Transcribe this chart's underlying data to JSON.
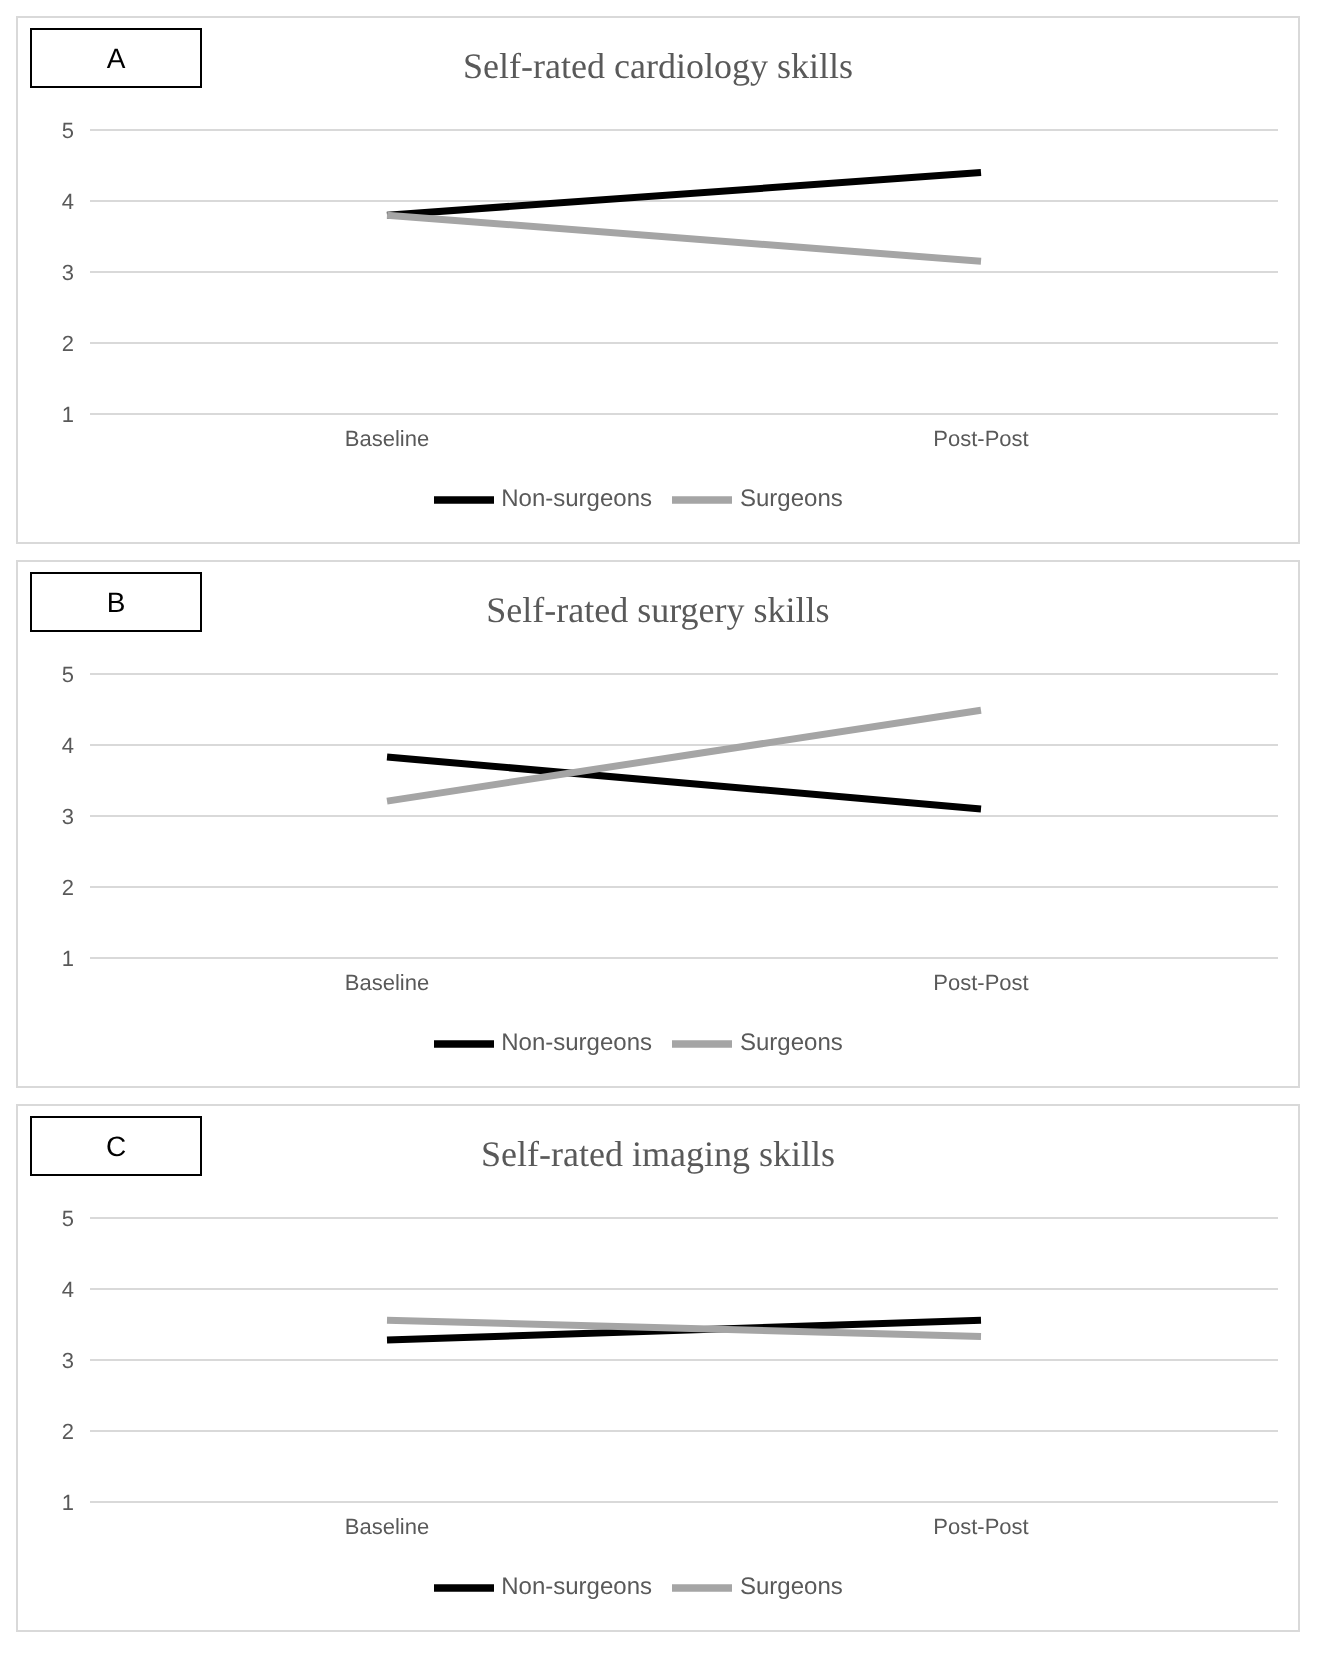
{
  "chart_data": [
    {
      "type": "line",
      "title": "Self-rated cardiology skills",
      "annotations": [
        "A"
      ],
      "categories": [
        "Baseline",
        "Post-Post"
      ],
      "series": [
        {
          "name": "Non-surgeons",
          "color": "#000000",
          "values": [
            3.8,
            4.4
          ]
        },
        {
          "name": "Surgeons",
          "color": "#a5a5a5",
          "values": [
            3.8,
            3.15
          ]
        }
      ],
      "ylim": [
        1,
        5
      ],
      "yticks": [
        1,
        2,
        3,
        4,
        5
      ],
      "grid": "y",
      "legend": "bottom",
      "marker": "none",
      "line_style": "solid"
    },
    {
      "type": "line",
      "title": "Self-rated surgery skills",
      "annotations": [
        "B"
      ],
      "categories": [
        "Baseline",
        "Post-Post"
      ],
      "series": [
        {
          "name": "Non-surgeons",
          "color": "#000000",
          "values": [
            3.83,
            3.1
          ]
        },
        {
          "name": "Surgeons",
          "color": "#a5a5a5",
          "values": [
            3.21,
            4.49
          ]
        }
      ],
      "ylim": [
        1,
        5
      ],
      "yticks": [
        1,
        2,
        3,
        4,
        5
      ],
      "grid": "y",
      "legend": "bottom",
      "marker": "none",
      "line_style": "solid"
    },
    {
      "type": "line",
      "title": "Self-rated imaging skills",
      "annotations": [
        "C"
      ],
      "categories": [
        "Baseline",
        "Post-Post"
      ],
      "series": [
        {
          "name": "Non-surgeons",
          "color": "#000000",
          "values": [
            3.28,
            3.56
          ]
        },
        {
          "name": "Surgeons",
          "color": "#a5a5a5",
          "values": [
            3.56,
            3.33
          ]
        }
      ],
      "ylim": [
        1,
        5
      ],
      "yticks": [
        1,
        2,
        3,
        4,
        5
      ],
      "grid": "y",
      "legend": "bottom",
      "marker": "none",
      "line_style": "solid"
    }
  ]
}
